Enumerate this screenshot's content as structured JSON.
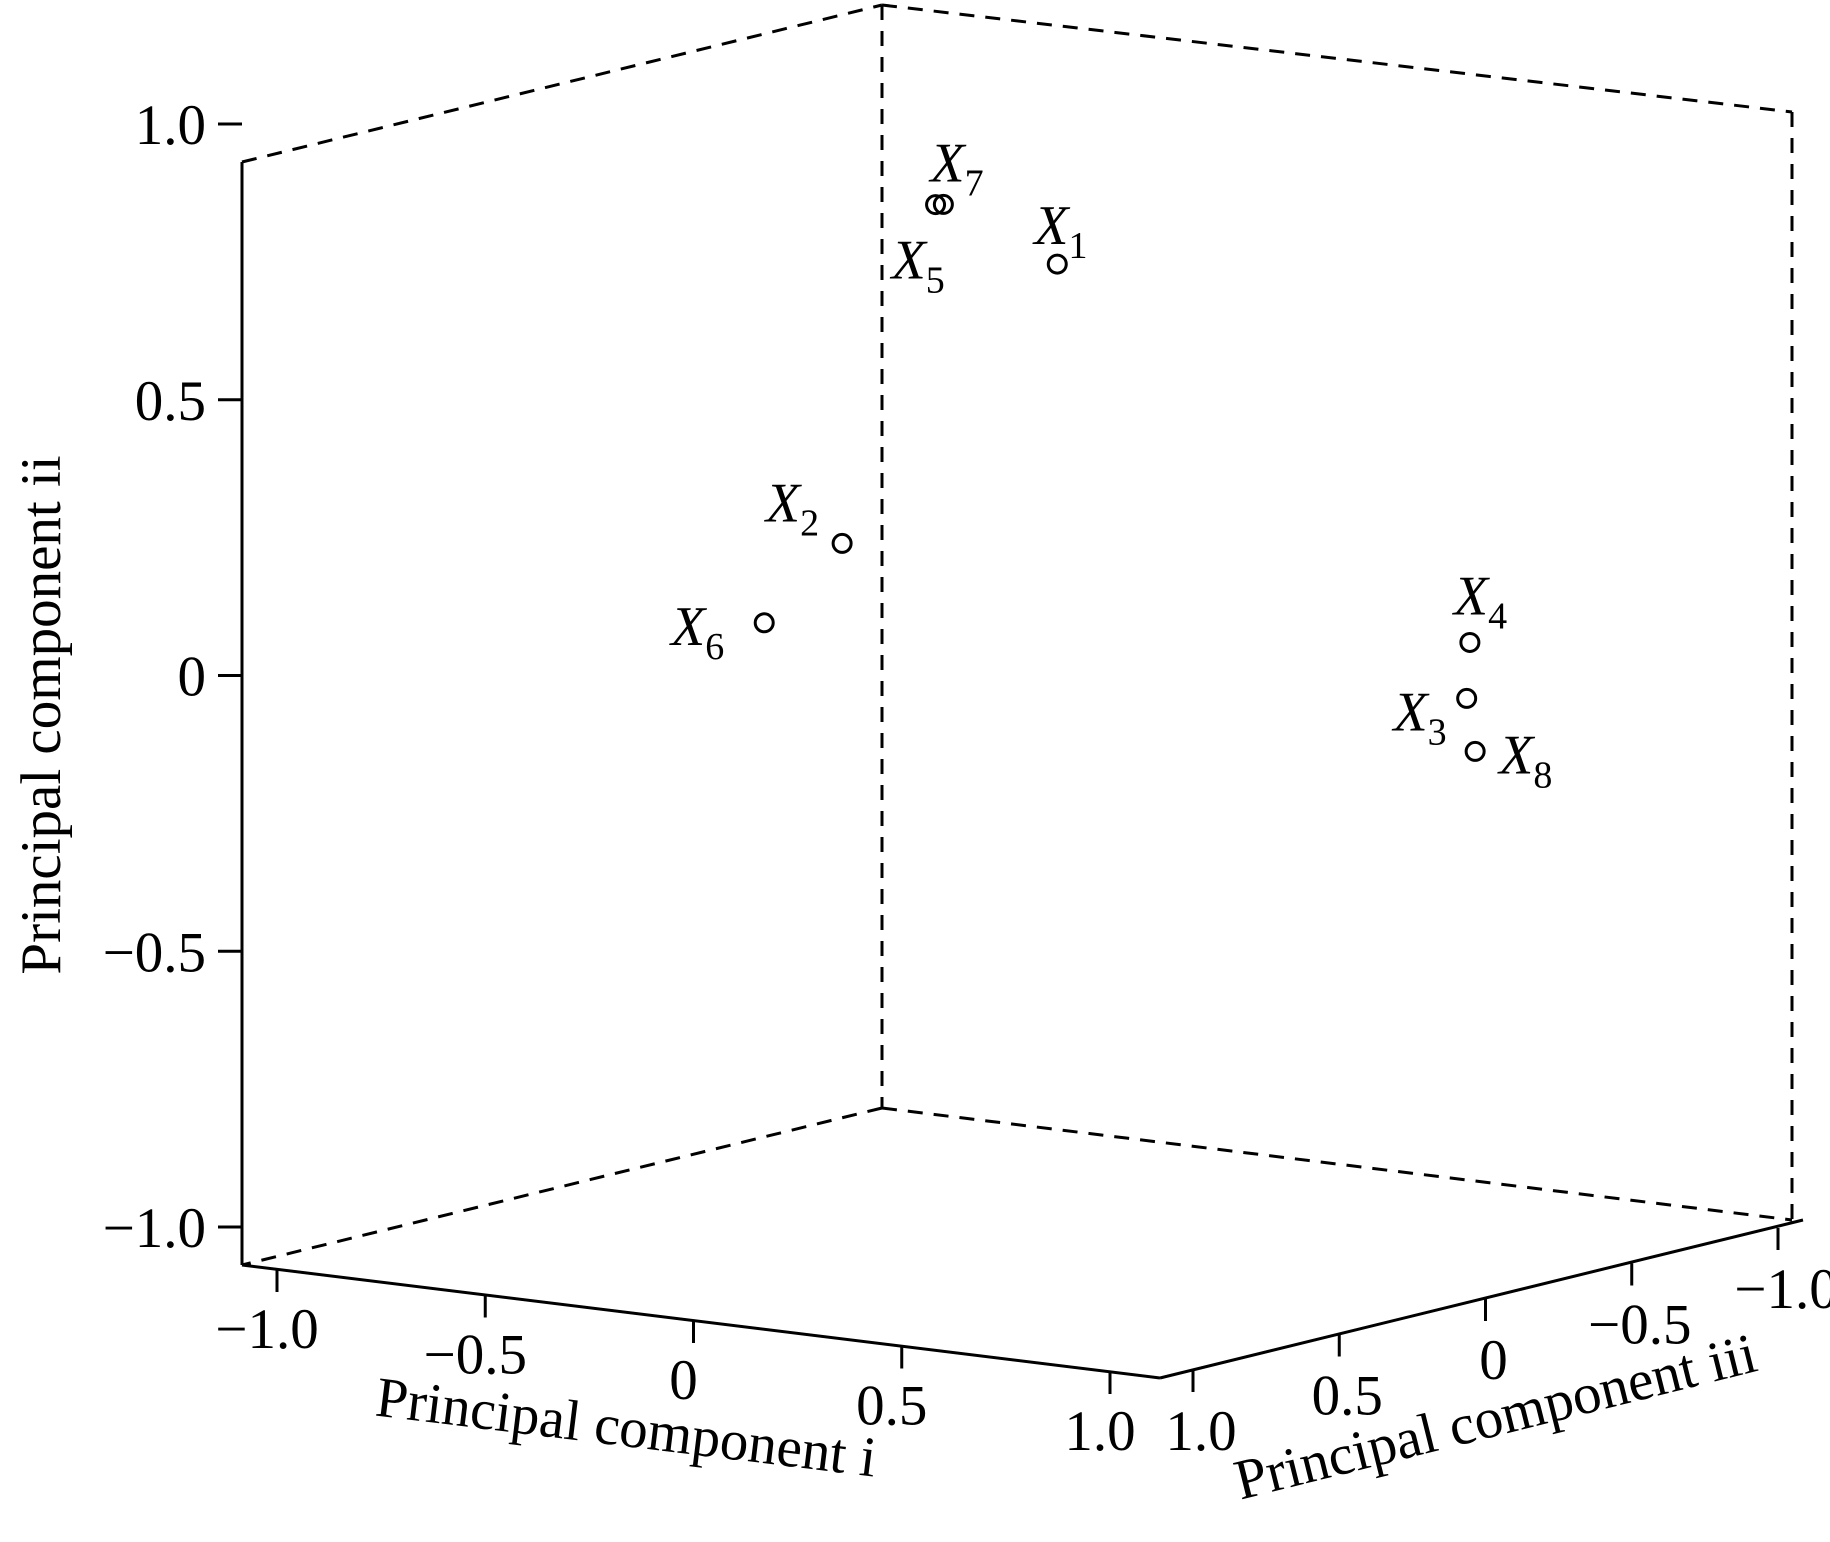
{
  "chart_data": {
    "type": "scatter",
    "projection": "3d",
    "title": "",
    "xlabel": "Principal component i",
    "ylabel": "Principal component ii",
    "zlabel": "Principal component iii",
    "xlim": [
      -1.0,
      1.0
    ],
    "ylim": [
      -1.0,
      1.0
    ],
    "zlim": [
      -1.0,
      1.0
    ],
    "x_ticks": [
      "−1.0",
      "−0.5",
      "0",
      "0.5",
      "1.0"
    ],
    "y_ticks": [
      "−1.0",
      "−0.5",
      "0",
      "0.5",
      "1.0"
    ],
    "z_ticks": [
      "1.0",
      "0.5",
      "0",
      "−0.5",
      "−1.0"
    ],
    "x_tick_values": [
      -1.0,
      -0.5,
      0,
      0.5,
      1.0
    ],
    "y_tick_values": [
      -1.0,
      -0.5,
      0,
      0.5,
      1.0
    ],
    "z_tick_values": [
      1.0,
      0.5,
      0,
      -0.5,
      -1.0
    ],
    "grid": false,
    "marker": "open-circle",
    "color": "#000000",
    "points": [
      {
        "label": "X",
        "sub": "1",
        "x": 0.33,
        "y": 0.86,
        "z": 0.36
      },
      {
        "label": "X",
        "sub": "2",
        "x": -0.32,
        "y": 0.25,
        "z": 0.1
      },
      {
        "label": "X",
        "sub": "3",
        "x": 0.72,
        "y": 0.01,
        "z": -0.36
      },
      {
        "label": "X",
        "sub": "4",
        "x": 0.72,
        "y": 0.11,
        "z": -0.37
      },
      {
        "label": "X",
        "sub": "5",
        "x": 0.03,
        "y": 0.93,
        "z": 0.31
      },
      {
        "label": "X",
        "sub": "6",
        "x": -0.42,
        "y": 0.11,
        "z": 0.2
      },
      {
        "label": "X",
        "sub": "7",
        "x": 0.04,
        "y": 0.93,
        "z": 0.3
      },
      {
        "label": "X",
        "sub": "8",
        "x": 0.85,
        "y": -0.05,
        "z": -0.2
      }
    ]
  }
}
